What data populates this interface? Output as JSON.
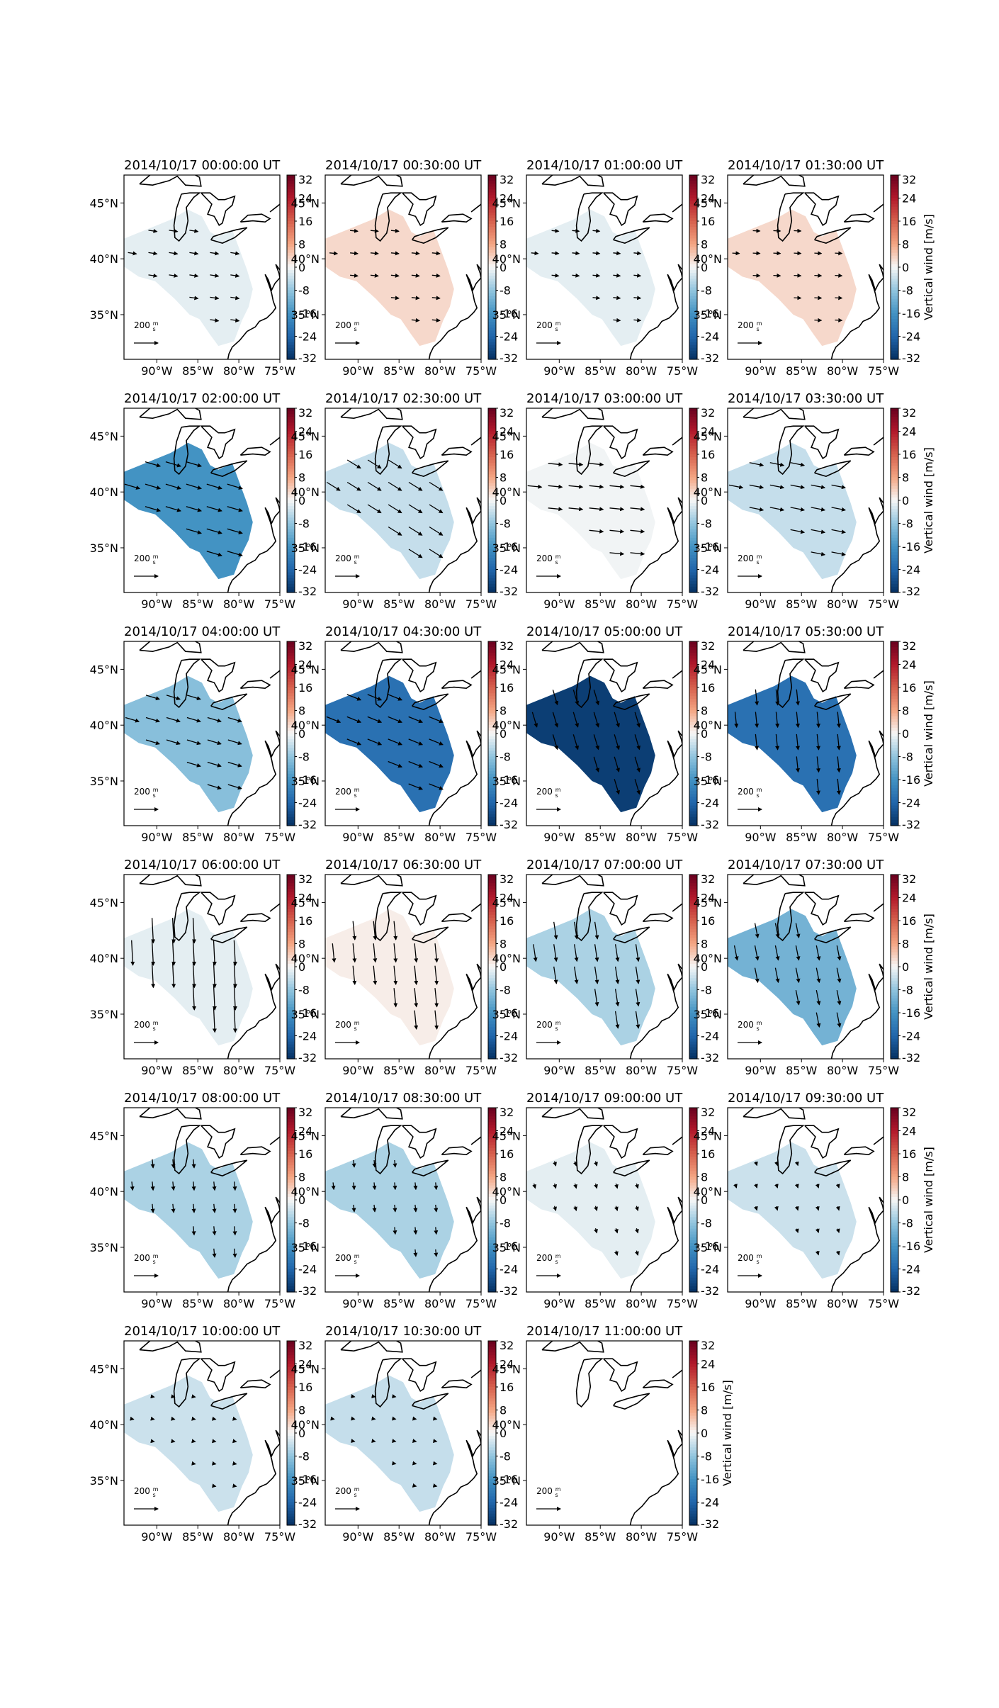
{
  "figure": {
    "colorbar_label": "Vertical wind [m/s]",
    "scale_arrow_value": "200",
    "scale_arrow_units_num": "m",
    "scale_arrow_units_den": "s"
  },
  "chart_data": {
    "type": "heatmap",
    "description_values": "vertical wind (m/s) per panel shown by fill colour, with horizontal wind arrows",
    "colorbar": {
      "ticks": [
        32,
        24,
        16,
        8,
        0,
        -8,
        -16,
        -24,
        -32
      ],
      "range": [
        -32,
        32
      ],
      "colormap": "RdBu_r",
      "colors": {
        "positive_max": "#67001f",
        "zero": "#f7f7f7",
        "negative_max": "#053061"
      }
    },
    "axes": {
      "lon_ticks": [
        "90°W",
        "85°W",
        "80°W",
        "75°W"
      ],
      "lon_values": [
        -90,
        -85,
        -80,
        -75
      ],
      "lat_ticks": [
        "45°N",
        "40°N",
        "35°N"
      ],
      "lat_values": [
        45,
        40,
        35
      ],
      "lon_range": [
        -94,
        -75
      ],
      "lat_range": [
        31,
        47.5
      ]
    },
    "panels": [
      {
        "title": "2014/10/17 00:00:00 UT",
        "vertical_wind": -1.5,
        "wind_dir": [
          1.0,
          -0.15
        ],
        "wind_len": 0.55
      },
      {
        "title": "2014/10/17 00:30:00 UT",
        "vertical_wind": 3.0,
        "wind_dir": [
          1.0,
          -0.1
        ],
        "wind_len": 0.5
      },
      {
        "title": "2014/10/17 01:00:00 UT",
        "vertical_wind": -1.5,
        "wind_dir": [
          1.0,
          -0.1
        ],
        "wind_len": 0.45
      },
      {
        "title": "2014/10/17 01:30:00 UT",
        "vertical_wind": 3.0,
        "wind_dir": [
          1.0,
          -0.05
        ],
        "wind_len": 0.45
      },
      {
        "title": "2014/10/17 02:00:00 UT",
        "vertical_wind": -16.0,
        "wind_dir": [
          1.0,
          -0.3
        ],
        "wind_len": 1.0
      },
      {
        "title": "2014/10/17 02:30:00 UT",
        "vertical_wind": -4.0,
        "wind_dir": [
          0.8,
          -0.5
        ],
        "wind_len": 1.0
      },
      {
        "title": "2014/10/17 03:00:00 UT",
        "vertical_wind": -0.5,
        "wind_dir": [
          1.0,
          -0.1
        ],
        "wind_len": 0.9
      },
      {
        "title": "2014/10/17 03:30:00 UT",
        "vertical_wind": -4.0,
        "wind_dir": [
          1.0,
          -0.2
        ],
        "wind_len": 0.9
      },
      {
        "title": "2014/10/17 04:00:00 UT",
        "vertical_wind": -9.0,
        "wind_dir": [
          1.0,
          -0.3
        ],
        "wind_len": 0.9
      },
      {
        "title": "2014/10/17 04:30:00 UT",
        "vertical_wind": -22.0,
        "wind_dir": [
          1.0,
          -0.4
        ],
        "wind_len": 0.95
      },
      {
        "title": "2014/10/17 05:00:00 UT",
        "vertical_wind": -30.0,
        "wind_dir": [
          0.3,
          -1.0
        ],
        "wind_len": 1.0
      },
      {
        "title": "2014/10/17 05:30:00 UT",
        "vertical_wind": -22.0,
        "wind_dir": [
          0.1,
          -1.0
        ],
        "wind_len": 1.0
      },
      {
        "title": "2014/10/17 06:00:00 UT",
        "vertical_wind": -1.5,
        "wind_dir": [
          0.05,
          -1.0
        ],
        "wind_len": 1.6
      },
      {
        "title": "2014/10/17 06:30:00 UT",
        "vertical_wind": 1.0,
        "wind_dir": [
          0.1,
          -1.0
        ],
        "wind_len": 1.2
      },
      {
        "title": "2014/10/17 07:00:00 UT",
        "vertical_wind": -6.0,
        "wind_dir": [
          0.15,
          -1.0
        ],
        "wind_len": 1.1
      },
      {
        "title": "2014/10/17 07:30:00 UT",
        "vertical_wind": -11.0,
        "wind_dir": [
          0.2,
          -1.0
        ],
        "wind_len": 0.95
      },
      {
        "title": "2014/10/17 08:00:00 UT",
        "vertical_wind": -6.0,
        "wind_dir": [
          0.1,
          -1.0
        ],
        "wind_len": 0.55
      },
      {
        "title": "2014/10/17 08:30:00 UT",
        "vertical_wind": -6.0,
        "wind_dir": [
          0.1,
          -1.0
        ],
        "wind_len": 0.45
      },
      {
        "title": "2014/10/17 09:00:00 UT",
        "vertical_wind": -1.5,
        "wind_dir": [
          0.3,
          -1.0
        ],
        "wind_len": 0.3
      },
      {
        "title": "2014/10/17 09:30:00 UT",
        "vertical_wind": -3.5,
        "wind_dir": [
          0.3,
          -1.0
        ],
        "wind_len": 0.25
      },
      {
        "title": "2014/10/17 10:00:00 UT",
        "vertical_wind": -3.5,
        "wind_dir": [
          1.0,
          -0.2
        ],
        "wind_len": 0.2
      },
      {
        "title": "2014/10/17 10:30:00 UT",
        "vertical_wind": -4.0,
        "wind_dir": [
          1.0,
          -0.2
        ],
        "wind_len": 0.1
      },
      {
        "title": "2014/10/17 11:00:00 UT",
        "vertical_wind": null,
        "wind_dir": [
          0,
          0
        ],
        "wind_len": 0
      }
    ]
  }
}
